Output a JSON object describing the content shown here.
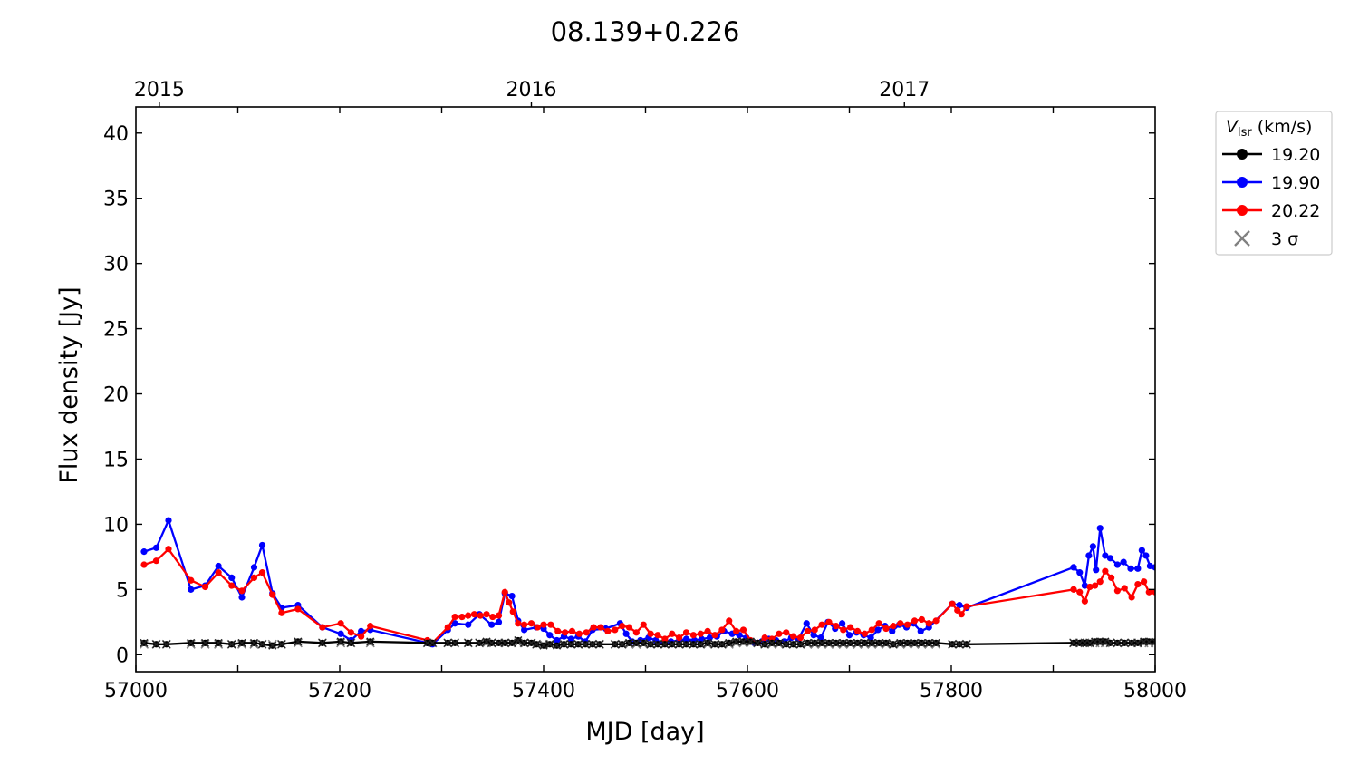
{
  "chart_data": {
    "type": "line",
    "title": "08.139+0.226",
    "xlabel": "MJD [day]",
    "ylabel": "Flux density [Jy]",
    "xlim": [
      57000,
      58000
    ],
    "ylim": [
      -1.3,
      42
    ],
    "x_ticks": [
      57000,
      57200,
      57400,
      57600,
      57800,
      58000
    ],
    "x_tick_labels": [
      "57000",
      "57200",
      "57400",
      "57600",
      "57800",
      "58000"
    ],
    "y_ticks": [
      0,
      5,
      10,
      15,
      20,
      25,
      30,
      35,
      40
    ],
    "y_tick_labels": [
      "0",
      "5",
      "10",
      "15",
      "20",
      "25",
      "30",
      "35",
      "40"
    ],
    "top_axis": {
      "ticks": [
        57023,
        57388,
        57754
      ],
      "labels": [
        "2015",
        "2016",
        "2017"
      ]
    },
    "legend": {
      "title_main": "V",
      "title_sub": "lsr",
      "title_rest": " (km/s)",
      "placement": "outside-upper-right",
      "entries": [
        {
          "label": "19.20",
          "color": "#000000",
          "marker": "circle-line"
        },
        {
          "label": "19.90",
          "color": "#0000ff",
          "marker": "circle-line"
        },
        {
          "label": "20.22",
          "color": "#ff0000",
          "marker": "circle-line"
        },
        {
          "label": "3 σ",
          "color": "#808080",
          "marker": "x"
        }
      ]
    },
    "series": [
      {
        "name": "19.90",
        "color": "#0000ff",
        "x": [
          57008,
          57020,
          57032,
          57054,
          57068,
          57081,
          57094,
          57104,
          57116,
          57124,
          57134,
          57143,
          57159,
          57183,
          57201,
          57211,
          57221,
          57230,
          57286,
          57291,
          57306,
          57313,
          57326,
          57337,
          57349,
          57356,
          57362,
          57369,
          57375,
          57381,
          57393,
          57400,
          57406,
          57413,
          57420,
          57427,
          57434,
          57441,
          57448,
          57461,
          57475,
          57481,
          57487,
          57495,
          57503,
          57510,
          57518,
          57525,
          57533,
          57540,
          57548,
          57555,
          57563,
          57570,
          57577,
          57585,
          57592,
          57599,
          57607,
          57614,
          57621,
          57628,
          57636,
          57643,
          57650,
          57658,
          57665,
          57672,
          57679,
          57686,
          57693,
          57700,
          57707,
          57714,
          57721,
          57728,
          57735,
          57742,
          57749,
          57756,
          57763,
          57770,
          57778,
          57801,
          57808,
          57815,
          57920,
          57926,
          57931,
          57935,
          57939,
          57942,
          57946,
          57951,
          57956,
          57963,
          57969,
          57976,
          57983,
          57987,
          57991,
          57995,
          58000
        ],
        "values": [
          7.9,
          8.2,
          10.3,
          5.0,
          5.3,
          6.8,
          5.9,
          4.4,
          6.7,
          8.4,
          4.7,
          3.6,
          3.8,
          2.1,
          1.6,
          1.1,
          1.8,
          1.9,
          0.9,
          0.8,
          1.9,
          2.4,
          2.3,
          3.1,
          2.3,
          2.5,
          4.7,
          4.5,
          2.6,
          1.9,
          2.1,
          2.0,
          1.5,
          1.1,
          1.4,
          1.2,
          1.4,
          1.0,
          1.9,
          2.0,
          2.4,
          1.6,
          1.0,
          1.1,
          1.3,
          1.1,
          0.9,
          1.0,
          1.1,
          1.2,
          1.1,
          1.2,
          1.3,
          1.4,
          1.8,
          1.6,
          1.5,
          1.3,
          0.9,
          1.0,
          1.2,
          1.1,
          1.0,
          1.3,
          1.2,
          2.4,
          1.5,
          1.3,
          2.5,
          2.0,
          2.4,
          1.5,
          1.7,
          1.5,
          1.3,
          1.9,
          2.2,
          1.8,
          2.3,
          2.1,
          2.4,
          1.8,
          2.1,
          3.9,
          3.8,
          3.6,
          6.7,
          6.3,
          5.3,
          7.6,
          8.3,
          6.5,
          9.7,
          7.6,
          7.4,
          6.9,
          7.1,
          6.6,
          6.6,
          8.0,
          7.6,
          6.8,
          6.7
        ]
      },
      {
        "name": "20.22",
        "color": "#ff0000",
        "x": [
          57008,
          57020,
          57032,
          57054,
          57068,
          57081,
          57094,
          57104,
          57116,
          57124,
          57134,
          57143,
          57159,
          57183,
          57201,
          57211,
          57221,
          57230,
          57286,
          57291,
          57306,
          57313,
          57320,
          57326,
          57332,
          57338,
          57344,
          57350,
          57356,
          57362,
          57366,
          57370,
          57375,
          57381,
          57388,
          57394,
          57400,
          57407,
          57414,
          57421,
          57428,
          57435,
          57442,
          57449,
          57456,
          57463,
          57470,
          57477,
          57484,
          57491,
          57498,
          57505,
          57512,
          57519,
          57526,
          57533,
          57540,
          57547,
          57554,
          57561,
          57568,
          57575,
          57582,
          57589,
          57596,
          57603,
          57610,
          57617,
          57624,
          57631,
          57638,
          57645,
          57652,
          57659,
          57666,
          57673,
          57680,
          57687,
          57694,
          57701,
          57708,
          57715,
          57722,
          57729,
          57736,
          57743,
          57750,
          57757,
          57764,
          57771,
          57778,
          57785,
          57801,
          57806,
          57810,
          57815,
          57920,
          57926,
          57931,
          57936,
          57941,
          57946,
          57951,
          57957,
          57963,
          57970,
          57977,
          57983,
          57989,
          57994,
          58000
        ],
        "values": [
          6.9,
          7.2,
          8.1,
          5.7,
          5.2,
          6.3,
          5.3,
          4.9,
          5.9,
          6.3,
          4.6,
          3.2,
          3.5,
          2.1,
          2.4,
          1.7,
          1.4,
          2.2,
          1.1,
          0.9,
          2.1,
          2.9,
          2.9,
          3.0,
          3.1,
          3.0,
          3.1,
          2.9,
          3.0,
          4.8,
          4.0,
          3.3,
          2.4,
          2.3,
          2.4,
          2.1,
          2.3,
          2.3,
          1.8,
          1.7,
          1.8,
          1.6,
          1.7,
          2.1,
          2.1,
          1.8,
          1.9,
          2.2,
          2.1,
          1.7,
          2.3,
          1.6,
          1.5,
          1.2,
          1.6,
          1.3,
          1.7,
          1.5,
          1.6,
          1.8,
          1.5,
          1.9,
          2.6,
          1.8,
          1.9,
          1.1,
          0.9,
          1.3,
          1.2,
          1.6,
          1.7,
          1.4,
          1.3,
          1.8,
          1.9,
          2.3,
          2.5,
          2.2,
          1.9,
          2.1,
          1.8,
          1.6,
          1.9,
          2.4,
          2.0,
          2.2,
          2.4,
          2.3,
          2.6,
          2.7,
          2.4,
          2.6,
          3.9,
          3.4,
          3.1,
          3.7,
          5.0,
          4.8,
          4.1,
          5.2,
          5.3,
          5.6,
          6.4,
          5.9,
          4.9,
          5.1,
          4.4,
          5.4,
          5.6,
          4.8,
          4.8
        ]
      },
      {
        "name": "19.20",
        "color": "#000000",
        "x": [
          57008,
          57020,
          57030,
          57054,
          57068,
          57081,
          57094,
          57104,
          57116,
          57124,
          57134,
          57143,
          57159,
          57183,
          57201,
          57211,
          57230,
          57286,
          57291,
          57306,
          57313,
          57326,
          57337,
          57344,
          57349,
          57356,
          57362,
          57369,
          57375,
          57381,
          57388,
          57393,
          57400,
          57406,
          57413,
          57420,
          57427,
          57434,
          57441,
          57448,
          57455,
          57470,
          57477,
          57484,
          57491,
          57498,
          57505,
          57512,
          57519,
          57526,
          57533,
          57540,
          57547,
          57554,
          57561,
          57568,
          57575,
          57582,
          57589,
          57596,
          57603,
          57610,
          57617,
          57624,
          57631,
          57638,
          57645,
          57652,
          57659,
          57666,
          57673,
          57680,
          57687,
          57694,
          57701,
          57708,
          57715,
          57722,
          57729,
          57736,
          57743,
          57750,
          57757,
          57764,
          57771,
          57778,
          57785,
          57801,
          57808,
          57815,
          57920,
          57926,
          57931,
          57936,
          57941,
          57946,
          57951,
          57956,
          57963,
          57970,
          57977,
          57983,
          57989,
          57994,
          58000
        ],
        "values": [
          0.9,
          0.8,
          0.8,
          0.9,
          0.9,
          0.9,
          0.8,
          0.9,
          0.9,
          0.8,
          0.7,
          0.8,
          1.0,
          0.9,
          1.0,
          0.9,
          1.0,
          0.9,
          0.9,
          0.9,
          0.9,
          0.9,
          0.9,
          1.0,
          0.9,
          0.9,
          0.9,
          0.9,
          1.1,
          0.9,
          0.9,
          0.8,
          0.7,
          0.8,
          0.7,
          0.8,
          0.8,
          0.8,
          0.8,
          0.8,
          0.8,
          0.8,
          0.8,
          0.9,
          0.9,
          0.9,
          0.8,
          0.8,
          0.8,
          0.8,
          0.8,
          0.8,
          0.8,
          0.8,
          0.9,
          0.8,
          0.8,
          0.9,
          1.0,
          1.0,
          1.0,
          0.9,
          0.8,
          0.9,
          0.9,
          0.8,
          0.8,
          0.8,
          0.9,
          0.9,
          0.9,
          0.9,
          0.9,
          0.9,
          0.9,
          0.9,
          0.9,
          0.9,
          0.9,
          0.9,
          0.8,
          0.9,
          0.9,
          0.9,
          0.9,
          0.9,
          0.9,
          0.8,
          0.8,
          0.8,
          0.9,
          0.9,
          0.9,
          0.9,
          1.0,
          1.0,
          1.0,
          0.9,
          0.9,
          0.9,
          0.9,
          0.9,
          1.0,
          1.0,
          1.0
        ]
      }
    ],
    "sigma3": {
      "name": "3 σ",
      "color": "#808080",
      "x": [
        57008,
        57020,
        57030,
        57054,
        57068,
        57081,
        57094,
        57104,
        57116,
        57124,
        57134,
        57143,
        57159,
        57183,
        57201,
        57211,
        57230,
        57286,
        57291,
        57306,
        57313,
        57326,
        57337,
        57344,
        57349,
        57356,
        57362,
        57369,
        57375,
        57381,
        57388,
        57393,
        57400,
        57406,
        57413,
        57420,
        57427,
        57434,
        57441,
        57448,
        57455,
        57470,
        57477,
        57484,
        57491,
        57498,
        57505,
        57512,
        57519,
        57526,
        57533,
        57540,
        57547,
        57554,
        57561,
        57568,
        57575,
        57582,
        57589,
        57596,
        57603,
        57610,
        57617,
        57624,
        57631,
        57638,
        57645,
        57652,
        57659,
        57666,
        57673,
        57680,
        57687,
        57694,
        57701,
        57708,
        57715,
        57722,
        57729,
        57736,
        57743,
        57750,
        57757,
        57764,
        57771,
        57778,
        57785,
        57801,
        57808,
        57815,
        57920,
        57926,
        57931,
        57936,
        57941,
        57946,
        57951,
        57956,
        57963,
        57970,
        57977,
        57983,
        57989,
        57994,
        58000
      ],
      "values": [
        0.8,
        0.8,
        0.8,
        0.8,
        0.8,
        0.8,
        0.8,
        0.8,
        0.8,
        0.8,
        0.8,
        0.8,
        0.9,
        0.9,
        0.9,
        0.9,
        0.9,
        0.9,
        0.9,
        0.9,
        0.9,
        0.9,
        0.9,
        0.9,
        0.9,
        0.9,
        0.9,
        0.9,
        0.9,
        0.9,
        0.9,
        0.8,
        0.8,
        0.8,
        0.8,
        0.8,
        0.8,
        0.8,
        0.8,
        0.8,
        0.8,
        0.8,
        0.8,
        0.8,
        0.8,
        0.8,
        0.8,
        0.8,
        0.8,
        0.8,
        0.8,
        0.8,
        0.8,
        0.8,
        0.8,
        0.8,
        0.8,
        0.8,
        0.9,
        0.9,
        0.9,
        0.9,
        0.8,
        0.8,
        0.8,
        0.8,
        0.8,
        0.8,
        0.8,
        0.8,
        0.8,
        0.8,
        0.8,
        0.8,
        0.8,
        0.8,
        0.8,
        0.8,
        0.8,
        0.8,
        0.8,
        0.8,
        0.8,
        0.8,
        0.8,
        0.8,
        0.8,
        0.8,
        0.8,
        0.8,
        0.9,
        0.9,
        0.9,
        0.9,
        0.9,
        0.9,
        0.9,
        0.9,
        0.9,
        0.9,
        0.9,
        0.9,
        0.9,
        0.9,
        0.9
      ]
    }
  }
}
